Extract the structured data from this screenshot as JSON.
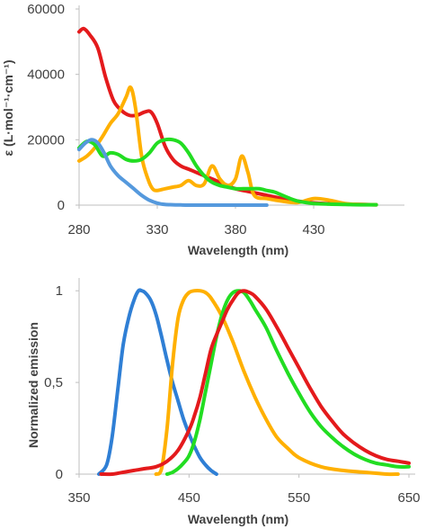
{
  "chart_data": [
    {
      "type": "line",
      "xlabel": "Wavelength (nm)",
      "ylabel": "ε (L·mol⁻¹·cm⁻¹)",
      "xlim": [
        280,
        480
      ],
      "ylim": [
        0,
        60000
      ],
      "xticks": [
        280,
        330,
        380,
        430
      ],
      "yticks": [
        0,
        20000,
        40000,
        60000
      ],
      "xtick_labels": [
        "280",
        "330",
        "380",
        "430"
      ],
      "ytick_labels": [
        "0",
        "20000",
        "40000",
        "60000"
      ],
      "grid": false,
      "legend": "none",
      "series": [
        {
          "color": "#e41a1c",
          "x": [
            280,
            283,
            287,
            292,
            297,
            302,
            307,
            312,
            317,
            322,
            326,
            330,
            335,
            340,
            345,
            350,
            355,
            360,
            365,
            370,
            375,
            380,
            390,
            400,
            410,
            420,
            430,
            440,
            450,
            460,
            470
          ],
          "y": [
            53000,
            54000,
            52000,
            48000,
            39000,
            32000,
            29000,
            27500,
            27500,
            28500,
            28500,
            25000,
            18000,
            14000,
            12000,
            11000,
            10000,
            9000,
            8000,
            7000,
            6000,
            5000,
            4000,
            3000,
            2000,
            1200,
            700,
            400,
            300,
            200,
            100
          ]
        },
        {
          "color": "#ffb000",
          "x": [
            280,
            285,
            290,
            295,
            300,
            305,
            310,
            313,
            316,
            320,
            324,
            327,
            330,
            335,
            340,
            345,
            350,
            355,
            360,
            365,
            370,
            375,
            380,
            384,
            388,
            392,
            400,
            410,
            420,
            430,
            440,
            450,
            460,
            470
          ],
          "y": [
            13500,
            15000,
            17500,
            21000,
            25000,
            28000,
            33000,
            36000,
            30000,
            15000,
            8000,
            5000,
            4500,
            5000,
            5500,
            6000,
            7500,
            6000,
            6500,
            12000,
            8000,
            6000,
            8000,
            15000,
            10000,
            3000,
            2000,
            1200,
            800,
            2000,
            1500,
            500,
            200,
            100
          ]
        },
        {
          "color": "#22dd22",
          "x": [
            280,
            285,
            290,
            295,
            300,
            305,
            310,
            315,
            320,
            325,
            330,
            335,
            340,
            345,
            350,
            355,
            360,
            365,
            370,
            375,
            380,
            385,
            390,
            395,
            400,
            405,
            410,
            415,
            420,
            425,
            430,
            440,
            450,
            460,
            470
          ],
          "y": [
            17500,
            19500,
            18500,
            15000,
            16000,
            15500,
            14000,
            13500,
            14000,
            16000,
            19000,
            20000,
            20000,
            19000,
            16000,
            12000,
            9000,
            7000,
            6000,
            5500,
            5000,
            5000,
            5000,
            5000,
            4500,
            4000,
            3000,
            2000,
            1200,
            800,
            500,
            300,
            200,
            100,
            100
          ]
        },
        {
          "color": "#5599dd",
          "x": [
            280,
            284,
            288,
            292,
            296,
            300,
            305,
            310,
            315,
            320,
            325,
            330,
            335,
            340,
            345,
            350,
            360,
            370,
            380,
            400
          ],
          "y": [
            17000,
            19000,
            20000,
            19000,
            16000,
            12000,
            9000,
            7000,
            5000,
            3000,
            1500,
            600,
            200,
            100,
            50,
            0,
            0,
            0,
            0,
            0
          ]
        }
      ]
    },
    {
      "type": "line",
      "xlabel": "Wavelength (nm)",
      "ylabel": "Normalized emission",
      "xlim": [
        350,
        650
      ],
      "ylim": [
        0,
        1.05
      ],
      "xticks": [
        350,
        450,
        550,
        650
      ],
      "yticks": [
        0,
        0.5,
        1
      ],
      "xtick_labels": [
        "350",
        "450",
        "550",
        "650"
      ],
      "ytick_labels": [
        "0",
        "0,5",
        "1"
      ],
      "grid": false,
      "legend": "none",
      "series": [
        {
          "color": "#2f7fd5",
          "x": [
            368,
            375,
            380,
            385,
            390,
            395,
            400,
            404,
            407,
            410,
            415,
            420,
            425,
            430,
            435,
            440,
            445,
            450,
            455,
            460,
            465,
            470,
            475
          ],
          "y": [
            0,
            0.05,
            0.2,
            0.45,
            0.7,
            0.85,
            0.95,
            1.0,
            1.0,
            0.99,
            0.95,
            0.87,
            0.75,
            0.62,
            0.5,
            0.4,
            0.3,
            0.22,
            0.15,
            0.09,
            0.05,
            0.02,
            0
          ]
        },
        {
          "color": "#ffb000",
          "x": [
            420,
            425,
            430,
            435,
            440,
            445,
            450,
            455,
            460,
            465,
            470,
            480,
            490,
            500,
            510,
            520,
            530,
            540,
            550,
            570,
            590,
            610,
            630,
            640
          ],
          "y": [
            0,
            0.03,
            0.25,
            0.6,
            0.85,
            0.95,
            0.99,
            1.0,
            1.0,
            0.99,
            0.96,
            0.86,
            0.72,
            0.56,
            0.42,
            0.3,
            0.2,
            0.14,
            0.09,
            0.04,
            0.02,
            0.01,
            0,
            0
          ]
        },
        {
          "color": "#22dd22",
          "x": [
            430,
            435,
            440,
            445,
            450,
            455,
            460,
            465,
            470,
            475,
            480,
            485,
            490,
            495,
            500,
            505,
            510,
            520,
            530,
            540,
            550,
            560,
            570,
            580,
            590,
            600,
            610,
            620,
            630,
            640,
            650
          ],
          "y": [
            0,
            0.01,
            0.03,
            0.06,
            0.1,
            0.18,
            0.3,
            0.45,
            0.6,
            0.75,
            0.87,
            0.95,
            0.99,
            1.0,
            0.99,
            0.95,
            0.9,
            0.8,
            0.67,
            0.55,
            0.44,
            0.34,
            0.26,
            0.2,
            0.15,
            0.11,
            0.08,
            0.06,
            0.05,
            0.04,
            0.04
          ]
        },
        {
          "color": "#e41a1c",
          "x": [
            370,
            380,
            390,
            400,
            410,
            420,
            430,
            440,
            450,
            455,
            460,
            465,
            470,
            475,
            480,
            485,
            490,
            495,
            500,
            505,
            510,
            520,
            530,
            540,
            550,
            560,
            570,
            580,
            590,
            600,
            610,
            620,
            630,
            640,
            650
          ],
          "y": [
            0,
            0,
            0.01,
            0.02,
            0.03,
            0.04,
            0.07,
            0.13,
            0.24,
            0.32,
            0.42,
            0.55,
            0.68,
            0.76,
            0.83,
            0.9,
            0.95,
            0.99,
            1.0,
            0.99,
            0.97,
            0.9,
            0.8,
            0.69,
            0.58,
            0.47,
            0.37,
            0.29,
            0.22,
            0.17,
            0.13,
            0.1,
            0.08,
            0.07,
            0.06
          ]
        }
      ]
    }
  ]
}
